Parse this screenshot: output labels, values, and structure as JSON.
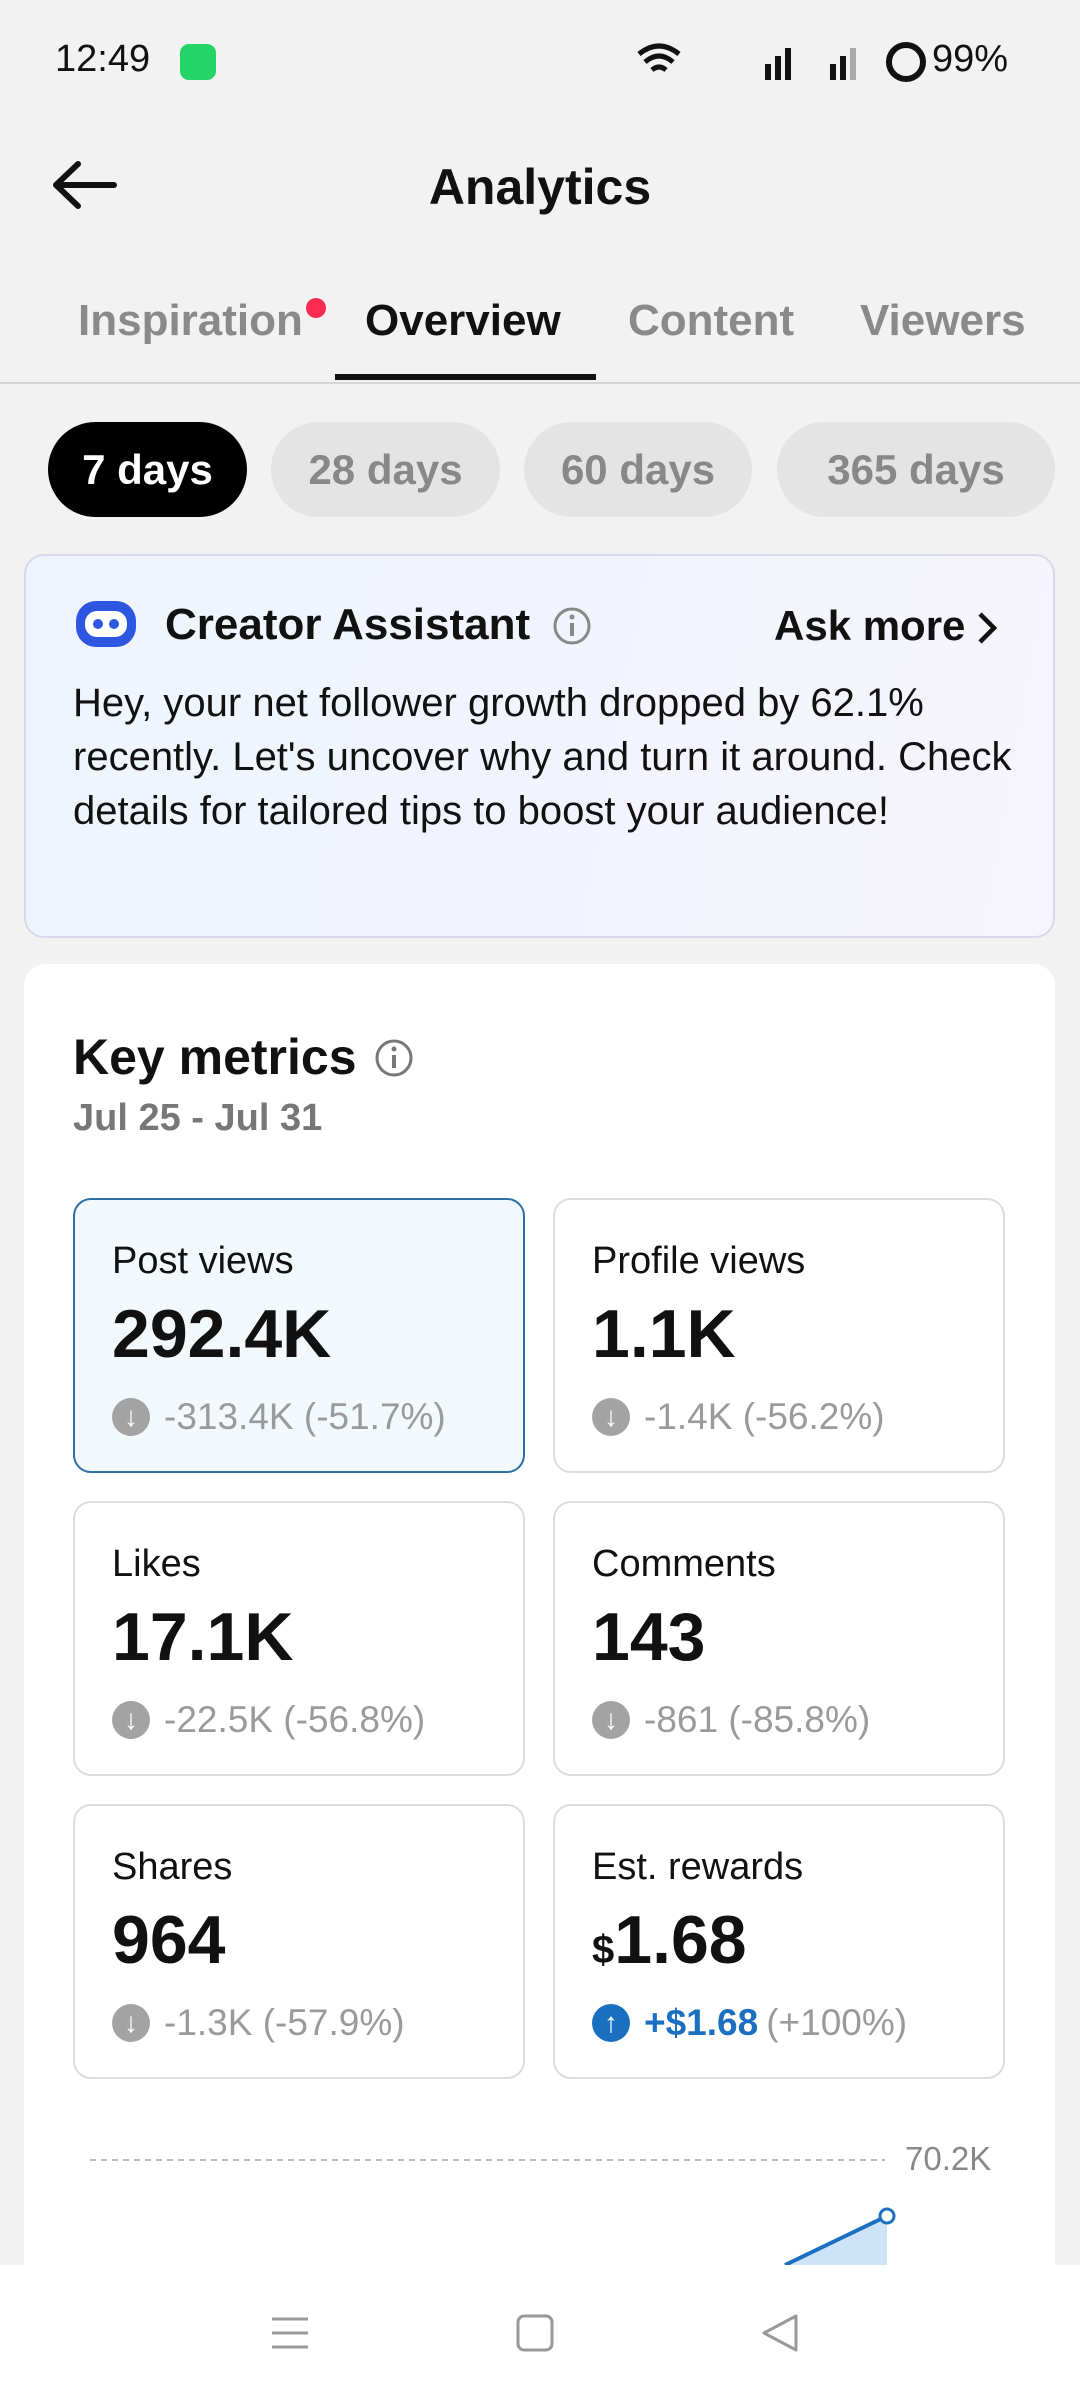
{
  "status_bar": {
    "time": "12:49",
    "battery": "99%"
  },
  "header": {
    "title": "Analytics"
  },
  "tabs": [
    "Inspiration",
    "Overview",
    "Content",
    "Viewers"
  ],
  "periods": [
    "7 days",
    "28 days",
    "60 days",
    "365 days"
  ],
  "assistant": {
    "title": "Creator Assistant",
    "action": "Ask more",
    "message": "Hey, your net follower growth dropped by 62.1% recently. Let's uncover why and turn it around. Check details for tailored tips to boost your audience!"
  },
  "key_metrics": {
    "title": "Key metrics",
    "date_range": "Jul 25 - Jul 31",
    "tiles": [
      {
        "label": "Post views",
        "value": "292.4K",
        "change": "-313.4K (-51.7%)"
      },
      {
        "label": "Profile views",
        "value": "1.1K",
        "change": "-1.4K (-56.2%)"
      },
      {
        "label": "Likes",
        "value": "17.1K",
        "change": "-22.5K (-56.8%)"
      },
      {
        "label": "Comments",
        "value": "143",
        "change": "-861 (-85.8%)"
      },
      {
        "label": "Shares",
        "value": "964",
        "change": "-1.3K (-57.9%)"
      },
      {
        "label": "Est. rewards",
        "currency": "$",
        "value": "1.68",
        "change": "+$1.68",
        "change_percent": "(+100%)"
      }
    ]
  },
  "chart": {
    "max_label": "70.2K"
  }
}
